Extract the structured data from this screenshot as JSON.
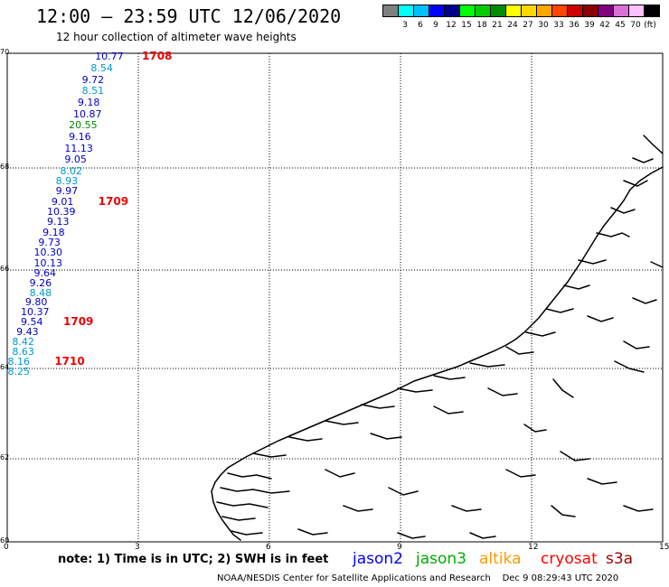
{
  "header": {
    "title": "12:00 – 23:59 UTC 12/06/2020",
    "subtitle": "12 hour collection of altimeter wave heights"
  },
  "scale": {
    "unit": "(ft)",
    "entries": [
      {
        "label": "",
        "color": "#808080"
      },
      {
        "label": "3",
        "color": "#00ffff"
      },
      {
        "label": "6",
        "color": "#00bfff"
      },
      {
        "label": "9",
        "color": "#0000ff"
      },
      {
        "label": "12",
        "color": "#00008b"
      },
      {
        "label": "15",
        "color": "#00ff00"
      },
      {
        "label": "18",
        "color": "#00cd00"
      },
      {
        "label": "21",
        "color": "#008b00"
      },
      {
        "label": "24",
        "color": "#ffff00"
      },
      {
        "label": "27",
        "color": "#ffd700"
      },
      {
        "label": "30",
        "color": "#ffa500"
      },
      {
        "label": "33",
        "color": "#ff4500"
      },
      {
        "label": "36",
        "color": "#cd0000"
      },
      {
        "label": "39",
        "color": "#8b0000"
      },
      {
        "label": "42",
        "color": "#800080"
      },
      {
        "label": "45",
        "color": "#da70d6"
      },
      {
        "label": "70",
        "color": "#ffc0ff"
      },
      {
        "label": "",
        "color": "#000000"
      }
    ]
  },
  "axes": {
    "lat_labels": [
      "70",
      "68",
      "66",
      "64",
      "62",
      "60"
    ],
    "lon_labels": [
      "0",
      "3",
      "6",
      "9",
      "12",
      "15"
    ]
  },
  "observations": [
    {
      "value": "10.77",
      "color": "#0000cc",
      "lat": 69.95,
      "lon": 2.3
    },
    {
      "value": "8.54",
      "color": "#0099cc",
      "lat": 69.75,
      "lon": 2.2
    },
    {
      "value": "9.72",
      "color": "#0000cc",
      "lat": 69.55,
      "lon": 2.0
    },
    {
      "value": "8.51",
      "color": "#0099cc",
      "lat": 69.35,
      "lon": 2.0
    },
    {
      "value": "9.18",
      "color": "#0000cc",
      "lat": 69.15,
      "lon": 1.9
    },
    {
      "value": "10.87",
      "color": "#0000cc",
      "lat": 68.95,
      "lon": 1.8
    },
    {
      "value": "20.55",
      "color": "#008800",
      "lat": 68.75,
      "lon": 1.7
    },
    {
      "value": "9.16",
      "color": "#0000cc",
      "lat": 68.55,
      "lon": 1.7
    },
    {
      "value": "11.13",
      "color": "#0000cc",
      "lat": 68.35,
      "lon": 1.6
    },
    {
      "value": "9.05",
      "color": "#0000cc",
      "lat": 68.15,
      "lon": 1.6
    },
    {
      "value": "8.02",
      "color": "#0099cc",
      "lat": 67.95,
      "lon": 1.5
    },
    {
      "value": "8.93",
      "color": "#0099cc",
      "lat": 67.75,
      "lon": 1.4
    },
    {
      "value": "9.97",
      "color": "#0000cc",
      "lat": 67.55,
      "lon": 1.4
    },
    {
      "value": "9.01",
      "color": "#0000cc",
      "lat": 67.35,
      "lon": 1.3
    },
    {
      "value": "10.39",
      "color": "#0000cc",
      "lat": 67.15,
      "lon": 1.2
    },
    {
      "value": "9.13",
      "color": "#0000cc",
      "lat": 66.95,
      "lon": 1.2
    },
    {
      "value": "9.18",
      "color": "#0000cc",
      "lat": 66.75,
      "lon": 1.1
    },
    {
      "value": "9.73",
      "color": "#0000cc",
      "lat": 66.55,
      "lon": 1.0
    },
    {
      "value": "10.30",
      "color": "#0000cc",
      "lat": 66.35,
      "lon": 0.9
    },
    {
      "value": "10.13",
      "color": "#0000cc",
      "lat": 66.15,
      "lon": 0.9
    },
    {
      "value": "9.64",
      "color": "#0000cc",
      "lat": 65.95,
      "lon": 0.9
    },
    {
      "value": "9.26",
      "color": "#0000cc",
      "lat": 65.75,
      "lon": 0.8
    },
    {
      "value": "8.48",
      "color": "#0099cc",
      "lat": 65.55,
      "lon": 0.8
    },
    {
      "value": "9.80",
      "color": "#0000cc",
      "lat": 65.35,
      "lon": 0.7
    },
    {
      "value": "10.37",
      "color": "#0000cc",
      "lat": 65.15,
      "lon": 0.6
    },
    {
      "value": "9.54",
      "color": "#0000cc",
      "lat": 64.95,
      "lon": 0.6
    },
    {
      "value": "9.43",
      "color": "#0000cc",
      "lat": 64.75,
      "lon": 0.5
    },
    {
      "value": "8.42",
      "color": "#0099cc",
      "lat": 64.55,
      "lon": 0.4
    },
    {
      "value": "8.63",
      "color": "#0099cc",
      "lat": 64.35,
      "lon": 0.4
    },
    {
      "value": "8.16",
      "color": "#0099cc",
      "lat": 64.15,
      "lon": 0.3
    },
    {
      "value": "8.25",
      "color": "#0099cc",
      "lat": 63.95,
      "lon": 0.3
    }
  ],
  "pass_times": [
    {
      "label": "1708",
      "lat": 69.95,
      "lon": 3.0
    },
    {
      "label": "1709",
      "lat": 67.35,
      "lon": 2.0
    },
    {
      "label": "1709",
      "lat": 64.95,
      "lon": 1.2
    },
    {
      "label": "1710",
      "lat": 64.15,
      "lon": 1.0
    }
  ],
  "note": "note:  1) Time is in UTC;  2) SWH is in feet",
  "satellites": [
    {
      "name": "jason2",
      "color": "#0000ff"
    },
    {
      "name": "jason3",
      "color": "#00aa00"
    },
    {
      "name": "altika",
      "color": "#ff9900"
    },
    {
      "name": "cryosat",
      "color": "#ff0000"
    },
    {
      "name": "s3a",
      "color": "#990000"
    }
  ],
  "footer": {
    "center": "NOAA/NESDIS Center for Satellite Applications and Research",
    "timestamp": "Dec  9 08:29:43 UTC 2020"
  }
}
